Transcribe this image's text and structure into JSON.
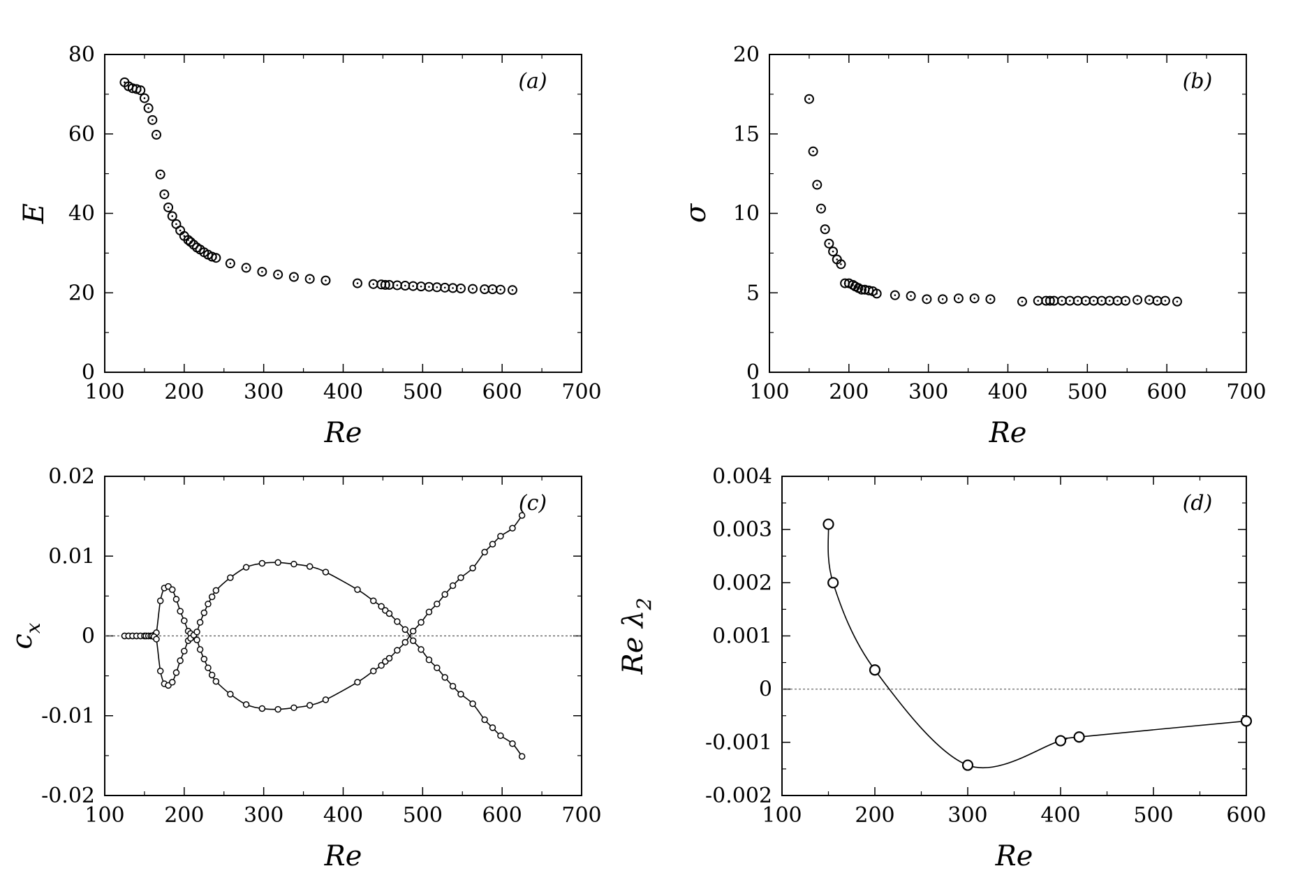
{
  "chart_data": [
    {
      "type": "scatter",
      "panel_label": "(a)",
      "xlabel": "Re",
      "ylabel": "E",
      "xlim": [
        100,
        700
      ],
      "ylim": [
        0,
        80
      ],
      "xticks": [
        "100",
        "200",
        "300",
        "400",
        "500",
        "600",
        "700"
      ],
      "yticks": [
        "0",
        "20",
        "40",
        "60",
        "80"
      ],
      "zero_line": false,
      "series": [
        {
          "name": "E",
          "marker": "dotted-circle",
          "points": [
            [
              125,
              73
            ],
            [
              130,
              72
            ],
            [
              135,
              71.5
            ],
            [
              140,
              71.3
            ],
            [
              145,
              71
            ],
            [
              150,
              69
            ],
            [
              155,
              66.5
            ],
            [
              160,
              63.5
            ],
            [
              165,
              59.8
            ],
            [
              170,
              49.8
            ],
            [
              175,
              44.8
            ],
            [
              180,
              41.5
            ],
            [
              185,
              39.3
            ],
            [
              190,
              37.3
            ],
            [
              195,
              35.7
            ],
            [
              200,
              34.3
            ],
            [
              205,
              33.3
            ],
            [
              208,
              32.8
            ],
            [
              212,
              32.1
            ],
            [
              216,
              31.4
            ],
            [
              220,
              30.9
            ],
            [
              225,
              30.2
            ],
            [
              230,
              29.6
            ],
            [
              235,
              29.1
            ],
            [
              240,
              28.8
            ],
            [
              258,
              27.4
            ],
            [
              278,
              26.3
            ],
            [
              298,
              25.3
            ],
            [
              318,
              24.6
            ],
            [
              338,
              24
            ],
            [
              358,
              23.5
            ],
            [
              378,
              23.1
            ],
            [
              418,
              22.4
            ],
            [
              438,
              22.2
            ],
            [
              448,
              22.1
            ],
            [
              453,
              22
            ],
            [
              458,
              22
            ],
            [
              468,
              21.9
            ],
            [
              478,
              21.8
            ],
            [
              488,
              21.7
            ],
            [
              498,
              21.6
            ],
            [
              508,
              21.5
            ],
            [
              518,
              21.4
            ],
            [
              528,
              21.3
            ],
            [
              538,
              21.2
            ],
            [
              548,
              21.1
            ],
            [
              563,
              21
            ],
            [
              578,
              20.9
            ],
            [
              588,
              20.9
            ],
            [
              598,
              20.8
            ],
            [
              613,
              20.7
            ]
          ]
        }
      ]
    },
    {
      "type": "scatter",
      "panel_label": "(b)",
      "xlabel": "Re",
      "ylabel": "σ",
      "xlim": [
        100,
        700
      ],
      "ylim": [
        0,
        20
      ],
      "xticks": [
        "100",
        "200",
        "300",
        "400",
        "500",
        "600",
        "700"
      ],
      "yticks": [
        "0",
        "5",
        "10",
        "15",
        "20"
      ],
      "zero_line": false,
      "series": [
        {
          "name": "sigma",
          "marker": "dotted-circle",
          "points": [
            [
              150,
              17.2
            ],
            [
              155,
              13.9
            ],
            [
              160,
              11.8
            ],
            [
              165,
              10.3
            ],
            [
              170,
              9
            ],
            [
              175,
              8.1
            ],
            [
              180,
              7.6
            ],
            [
              185,
              7.1
            ],
            [
              190,
              6.8
            ],
            [
              195,
              5.6
            ],
            [
              200,
              5.6
            ],
            [
              205,
              5.5
            ],
            [
              208,
              5.4
            ],
            [
              212,
              5.3
            ],
            [
              216,
              5.2
            ],
            [
              220,
              5.2
            ],
            [
              225,
              5.15
            ],
            [
              230,
              5.1
            ],
            [
              235,
              4.95
            ],
            [
              258,
              4.85
            ],
            [
              278,
              4.8
            ],
            [
              298,
              4.6
            ],
            [
              318,
              4.6
            ],
            [
              338,
              4.65
            ],
            [
              358,
              4.65
            ],
            [
              378,
              4.6
            ],
            [
              418,
              4.45
            ],
            [
              438,
              4.5
            ],
            [
              448,
              4.5
            ],
            [
              453,
              4.5
            ],
            [
              458,
              4.5
            ],
            [
              468,
              4.5
            ],
            [
              478,
              4.5
            ],
            [
              488,
              4.5
            ],
            [
              498,
              4.5
            ],
            [
              508,
              4.5
            ],
            [
              518,
              4.5
            ],
            [
              528,
              4.5
            ],
            [
              538,
              4.5
            ],
            [
              548,
              4.5
            ],
            [
              563,
              4.55
            ],
            [
              578,
              4.55
            ],
            [
              588,
              4.5
            ],
            [
              598,
              4.5
            ],
            [
              613,
              4.45
            ]
          ]
        }
      ]
    },
    {
      "type": "line",
      "panel_label": "(c)",
      "xlabel": "Re",
      "ylabel": "c",
      "ylabel_sub": "x",
      "xlim": [
        100,
        700
      ],
      "ylim": [
        -0.02,
        0.02
      ],
      "xticks": [
        "100",
        "200",
        "300",
        "400",
        "500",
        "600",
        "700"
      ],
      "yticks": [
        "-0.02",
        "-0.01",
        "0",
        "0.01",
        "0.02"
      ],
      "zero_line": true,
      "series": [
        {
          "name": "upper-branch",
          "marker": "small-circle",
          "points": [
            [
              125,
              0
            ],
            [
              130,
              0
            ],
            [
              135,
              0
            ],
            [
              140,
              0
            ],
            [
              145,
              0
            ],
            [
              150,
              0
            ],
            [
              152,
              0
            ],
            [
              155,
              0
            ],
            [
              158,
              0
            ],
            [
              160,
              0
            ],
            [
              162,
              0.0001
            ],
            [
              165,
              0.0004
            ],
            [
              170,
              0.0044
            ],
            [
              175,
              0.006
            ],
            [
              180,
              0.0062
            ],
            [
              185,
              0.0058
            ],
            [
              190,
              0.0046
            ],
            [
              195,
              0.0031
            ],
            [
              200,
              0.0019
            ],
            [
              205,
              0.0006
            ],
            [
              208,
              0.0003
            ],
            [
              212,
              -0.0001
            ],
            [
              216,
              -0.0005
            ],
            [
              220,
              -0.0017
            ],
            [
              225,
              -0.0029
            ],
            [
              230,
              -0.004
            ],
            [
              235,
              -0.0049
            ],
            [
              240,
              -0.0057
            ],
            [
              258,
              -0.0073
            ],
            [
              278,
              -0.0086
            ],
            [
              298,
              -0.0091
            ],
            [
              318,
              -0.0092
            ],
            [
              338,
              -0.009
            ],
            [
              358,
              -0.0087
            ],
            [
              378,
              -0.008
            ],
            [
              418,
              -0.0058
            ],
            [
              438,
              -0.0044
            ],
            [
              448,
              -0.0037
            ],
            [
              453,
              -0.0032
            ],
            [
              458,
              -0.0028
            ],
            [
              468,
              -0.0018
            ],
            [
              478,
              -0.0008
            ],
            [
              488,
              0.0006
            ],
            [
              498,
              0.0017
            ],
            [
              508,
              0.003
            ],
            [
              518,
              0.004
            ],
            [
              528,
              0.0052
            ],
            [
              538,
              0.0063
            ],
            [
              548,
              0.0073
            ],
            [
              563,
              0.0085
            ],
            [
              578,
              0.0105
            ],
            [
              588,
              0.0115
            ],
            [
              598,
              0.0125
            ],
            [
              613,
              0.0135
            ],
            [
              625,
              0.0151
            ]
          ]
        },
        {
          "name": "lower-branch",
          "marker": "small-circle",
          "points": [
            [
              125,
              0
            ],
            [
              130,
              0
            ],
            [
              135,
              0
            ],
            [
              140,
              0
            ],
            [
              145,
              0
            ],
            [
              150,
              0
            ],
            [
              152,
              0
            ],
            [
              155,
              0
            ],
            [
              158,
              0
            ],
            [
              160,
              0
            ],
            [
              162,
              -0.0001
            ],
            [
              165,
              -0.0004
            ],
            [
              170,
              -0.0044
            ],
            [
              175,
              -0.006
            ],
            [
              180,
              -0.0062
            ],
            [
              185,
              -0.0058
            ],
            [
              190,
              -0.0046
            ],
            [
              195,
              -0.0031
            ],
            [
              200,
              -0.0019
            ],
            [
              205,
              -0.0006
            ],
            [
              208,
              -0.0003
            ],
            [
              212,
              0.0001
            ],
            [
              216,
              0.0005
            ],
            [
              220,
              0.0017
            ],
            [
              225,
              0.0029
            ],
            [
              230,
              0.004
            ],
            [
              235,
              0.0049
            ],
            [
              240,
              0.0057
            ],
            [
              258,
              0.0073
            ],
            [
              278,
              0.0086
            ],
            [
              298,
              0.0091
            ],
            [
              318,
              0.0092
            ],
            [
              338,
              0.009
            ],
            [
              358,
              0.0087
            ],
            [
              378,
              0.008
            ],
            [
              418,
              0.0058
            ],
            [
              438,
              0.0044
            ],
            [
              448,
              0.0037
            ],
            [
              453,
              0.0032
            ],
            [
              458,
              0.0028
            ],
            [
              468,
              0.0018
            ],
            [
              478,
              0.0008
            ],
            [
              488,
              -0.0006
            ],
            [
              498,
              -0.0017
            ],
            [
              508,
              -0.003
            ],
            [
              518,
              -0.004
            ],
            [
              528,
              -0.0052
            ],
            [
              538,
              -0.0063
            ],
            [
              548,
              -0.0073
            ],
            [
              563,
              -0.0085
            ],
            [
              578,
              -0.0105
            ],
            [
              588,
              -0.0115
            ],
            [
              598,
              -0.0125
            ],
            [
              613,
              -0.0135
            ],
            [
              625,
              -0.0151
            ]
          ]
        }
      ]
    },
    {
      "type": "line",
      "panel_label": "(d)",
      "xlabel": "Re",
      "ylabel": "Re λ",
      "ylabel_sub": "2",
      "xlim": [
        100,
        600
      ],
      "ylim": [
        -0.002,
        0.004
      ],
      "xticks": [
        "100",
        "200",
        "300",
        "400",
        "500",
        "600"
      ],
      "yticks": [
        "-0.002",
        "-0.001",
        "0",
        "0.001",
        "0.002",
        "0.003",
        "0.004"
      ],
      "zero_line": true,
      "series": [
        {
          "name": "Re lambda_2",
          "marker": "large-circle",
          "points": [
            [
              150,
              0.0031
            ],
            [
              155,
              0.002
            ],
            [
              200,
              0.00036
            ],
            [
              300,
              -0.00143
            ],
            [
              400,
              -0.00097
            ],
            [
              420,
              -0.0009
            ],
            [
              600,
              -0.0006
            ]
          ]
        }
      ]
    }
  ]
}
